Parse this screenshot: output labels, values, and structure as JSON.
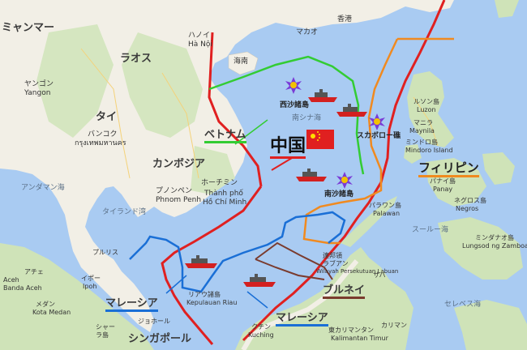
{
  "colors": {
    "water": "#a9cbf2",
    "land": "#f2efe6",
    "land_green": "#cfe3b8",
    "china_claim": "#e02020",
    "vietnam_claim": "#33cc33",
    "philippines_claim": "#f08a20",
    "malaysia_claim": "#1a6fd6",
    "brunei_claim": "#7a3b2e"
  },
  "labels": {
    "myanmar": "ミャンマー",
    "laos": "ラオス",
    "thailand": "タイ",
    "yangon": "ヤンゴン",
    "yangon_en": "Yangon",
    "bangkok": "バンコク",
    "bangkok_th": "กรุงเทพมหานคร",
    "cambodia": "カンボジア",
    "phnom_penh_jp": "プノンペン",
    "phnom_penh": "Phnom Penh",
    "hochiminh_jp": "ホーチミン",
    "hochiminh_1": "Thành phố",
    "hochiminh_2": "Hồ Chí Minh",
    "vietnam": "ベトナム",
    "hanoi_jp": "ハノイ",
    "hanoi": "Hà Nội",
    "hongkong": "香港",
    "macau": "マカオ",
    "hainan": "海南",
    "china": "中国",
    "paracel": "西沙諸島",
    "south_china_sea": "南シナ海",
    "scarborough": "スカボロー礁",
    "spratly": "南沙諸島",
    "philippines": "フィリピン",
    "luzon_jp": "ルソン島",
    "luzon": "Luzon",
    "manila_jp": "マニラ",
    "manila": "Maynila",
    "mindoro_jp": "ミンドロ島",
    "mindoro": "Mindoro Island",
    "panay_jp": "パナイ島",
    "panay": "Panay",
    "negros_jp": "ネグロス島",
    "negros": "Negros",
    "palawan_jp": "パラワン島",
    "palawan": "Palawan",
    "sulu_sea": "スールー海",
    "mindanao_jp": "ミンダナオ島",
    "mindanao": "Lungsod ng Zamboanga",
    "celebes_sea": "セレベス海",
    "andaman_sea": "アンダマン海",
    "gulf_of_thailand": "タイランド湾",
    "phuket": "プルリス",
    "aceh": "アチェ",
    "aceh_en": "Aceh",
    "banda_aceh": "Banda Aceh",
    "medan_jp": "メダン",
    "medan": "Kota Medan",
    "ipoh": "イポー",
    "ipoh_en": "Ipoh",
    "malaysia_west": "マレーシア",
    "johor": "ジョホール",
    "singapore": "シンガポール",
    "sumatra": "シャー",
    "sumatra2": "ラ島",
    "riau_jp": "リアウ諸島",
    "riau": "Kepulauan Riau",
    "brunei": "ブルネイ",
    "malaysia_east": "マレーシア",
    "labuan_jp": "連邦領",
    "labuan_jp2": "ラブアン",
    "labuan": "Wilayah Persekutuan Labuan",
    "kuching_jp": "クチン",
    "kuching": "Kuching",
    "kalimantan_jp": "東カリマンタン",
    "kalimantan": "Kalimantan Timur",
    "sabah": "サバ",
    "tarakan": "カリマン"
  }
}
